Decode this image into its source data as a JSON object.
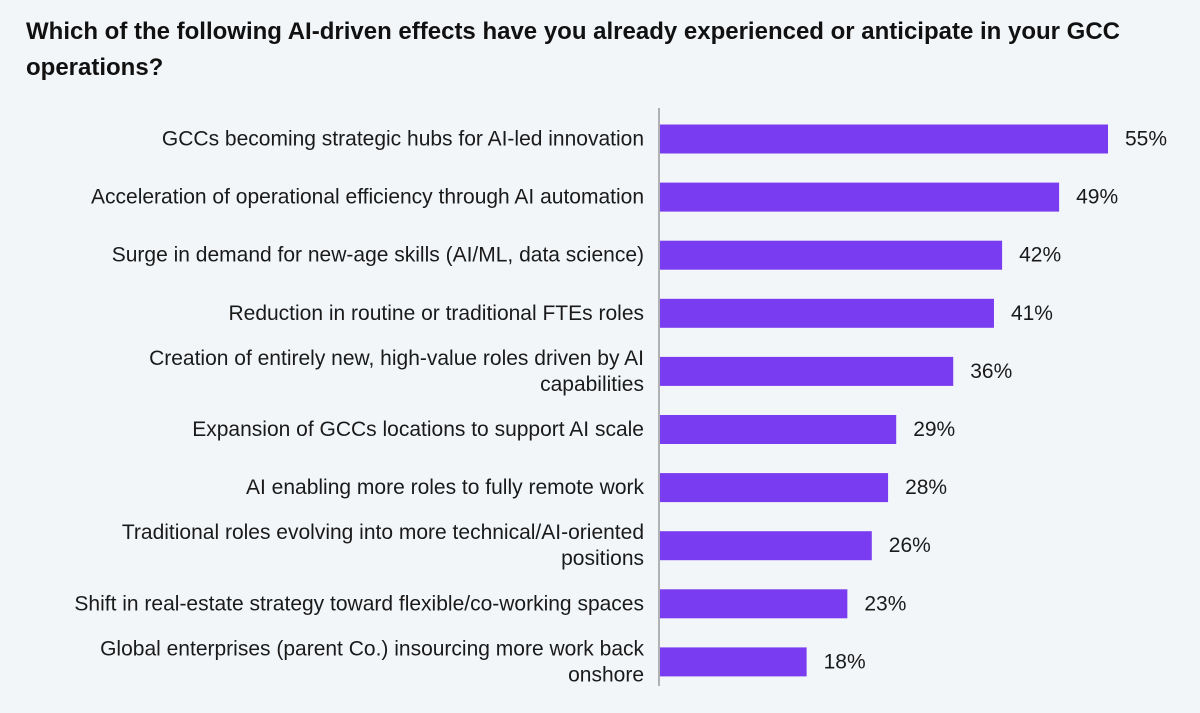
{
  "chart_data": {
    "type": "bar",
    "orientation": "horizontal",
    "title": "Which of the following AI-driven effects have you already experienced or anticipate in your GCC operations?",
    "categories": [
      "GCCs becoming strategic hubs for AI-led innovation",
      "Acceleration of operational efficiency through AI automation",
      "Surge in demand for new-age skills (AI/ML, data science)",
      "Reduction in routine or traditional FTEs roles",
      "Creation of entirely new, high-value roles driven by AI capabilities",
      "Expansion of GCCs locations to support AI scale",
      "AI enabling more roles to fully remote work",
      "Traditional roles evolving into more technical/AI-oriented positions",
      "Shift in real-estate strategy toward flexible/co-working spaces",
      "Global enterprises (parent Co.) insourcing more work back onshore"
    ],
    "category_lines": [
      [
        "GCCs becoming strategic hubs for AI-led innovation"
      ],
      [
        "Acceleration of operational efficiency through AI automation"
      ],
      [
        "Surge in demand for new-age skills (AI/ML, data science)"
      ],
      [
        "Reduction in routine or traditional FTEs roles"
      ],
      [
        "Creation of entirely new, high-value roles driven by AI",
        "capabilities"
      ],
      [
        "Expansion of GCCs locations to support AI scale"
      ],
      [
        "AI enabling more roles to fully remote work"
      ],
      [
        "Traditional roles evolving into more technical/AI-oriented",
        "positions"
      ],
      [
        "Shift in real-estate strategy toward flexible/co-working spaces"
      ],
      [
        "Global enterprises (parent Co.) insourcing more work back",
        "onshore"
      ]
    ],
    "values": [
      55,
      49,
      42,
      41,
      36,
      29,
      28,
      26,
      23,
      18
    ],
    "value_labels": [
      "55%",
      "49%",
      "42%",
      "41%",
      "36%",
      "29%",
      "28%",
      "26%",
      "23%",
      "18%"
    ],
    "unit": "%",
    "xlim": [
      0,
      55
    ],
    "grid": false,
    "legend": "none",
    "bar_color": "#7a3cf0",
    "axis_color": "#9a9a9a"
  }
}
